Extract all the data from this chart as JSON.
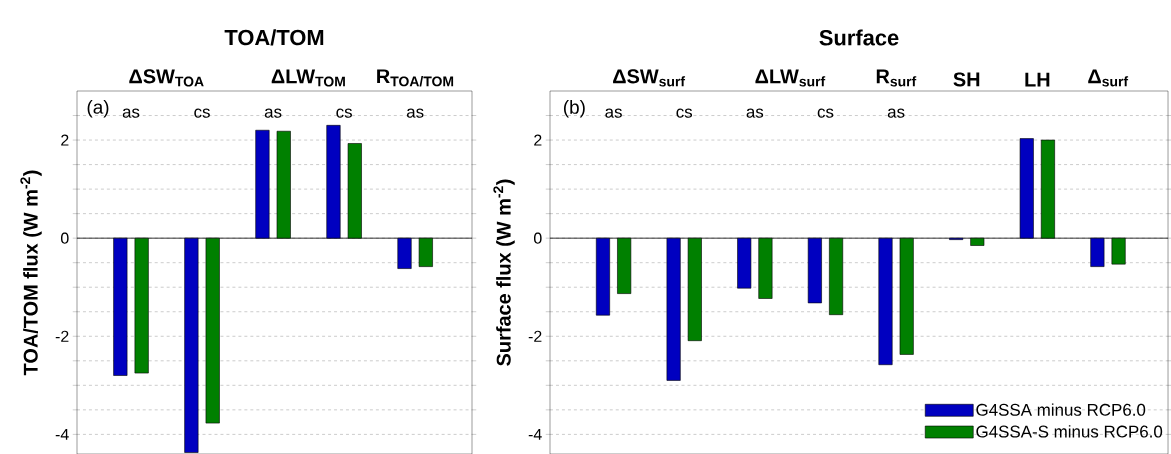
{
  "chart_data": [
    {
      "type": "bar",
      "title": "TOA/TOM",
      "ylabel": "TOA/TOM flux (W m$^{-2}$)",
      "categories": [
        "as",
        "cs",
        "as",
        "cs",
        "as"
      ],
      "series": [
        {
          "color": "#0000c0",
          "values": [
            -2.8,
            -4.37,
            2.2,
            2.3,
            -0.62
          ]
        },
        {
          "color": "#008000",
          "values": [
            -2.75,
            -3.77,
            2.18,
            1.93,
            -0.58
          ]
        }
      ],
      "ylim": [
        -4.4,
        3
      ],
      "yticks": [
        {
          "value": -4,
          "label": "-4"
        },
        {
          "value": -3.5,
          "label": null
        },
        {
          "value": -3,
          "label": null
        },
        {
          "value": -2.5,
          "label": null
        },
        {
          "value": -2,
          "label": "-2"
        },
        {
          "value": -1.5,
          "label": null
        },
        {
          "value": -1,
          "label": null
        },
        {
          "value": -0.5,
          "label": null
        },
        0,
        {
          "value": 0.5,
          "label": null
        },
        {
          "value": 1,
          "label": null
        },
        {
          "value": 1.5,
          "label": null
        },
        2,
        {
          "value": 2.5,
          "label": null
        }
      ],
      "grid": "y",
      "legend": false,
      "annotations": [
        "(a)",
        "ΔSW$_{TOA}$",
        "ΔLW$_{TOM}$",
        "R$_{TOA/TOM}$"
      ]
    },
    {
      "type": "bar",
      "title": "Surface",
      "ylabel": "Surface flux (W m$^{-2}$)",
      "categories": [
        "as",
        "cs",
        "as",
        "cs",
        "as",
        null,
        null,
        null
      ],
      "series": [
        {
          "name": "G4SSA minus RCP6.0",
          "color": "#0000c0",
          "values": [
            -1.57,
            -2.9,
            -1.02,
            -1.32,
            -2.58,
            -0.03,
            2.03,
            -0.58
          ]
        },
        {
          "name": "G4SSA-S minus RCP6.0",
          "color": "#008000",
          "values": [
            -1.13,
            -2.09,
            -1.23,
            -1.56,
            -2.37,
            -0.15,
            2.0,
            -0.53
          ]
        }
      ],
      "ylim": [
        -4.4,
        3
      ],
      "yticks": [
        {
          "value": -4,
          "label": "-4"
        },
        {
          "value": -3.5,
          "label": null
        },
        {
          "value": -3,
          "label": null
        },
        {
          "value": -2.5,
          "label": null
        },
        {
          "value": -2,
          "label": "-2"
        },
        {
          "value": -1.5,
          "label": null
        },
        {
          "value": -1,
          "label": null
        },
        {
          "value": -0.5,
          "label": null
        },
        0,
        {
          "value": 0.5,
          "label": null
        },
        {
          "value": 1,
          "label": null
        },
        {
          "value": 1.5,
          "label": null
        },
        2,
        {
          "value": 2.5,
          "label": null
        }
      ],
      "grid": "y",
      "legend": "bottom right",
      "annotations": [
        "(b)",
        "ΔSW$_{surf}$",
        "ΔLW$_{surf}$",
        "R$_{surf}$",
        "SH",
        "LH",
        "Δ$_{surf}$"
      ]
    }
  ]
}
